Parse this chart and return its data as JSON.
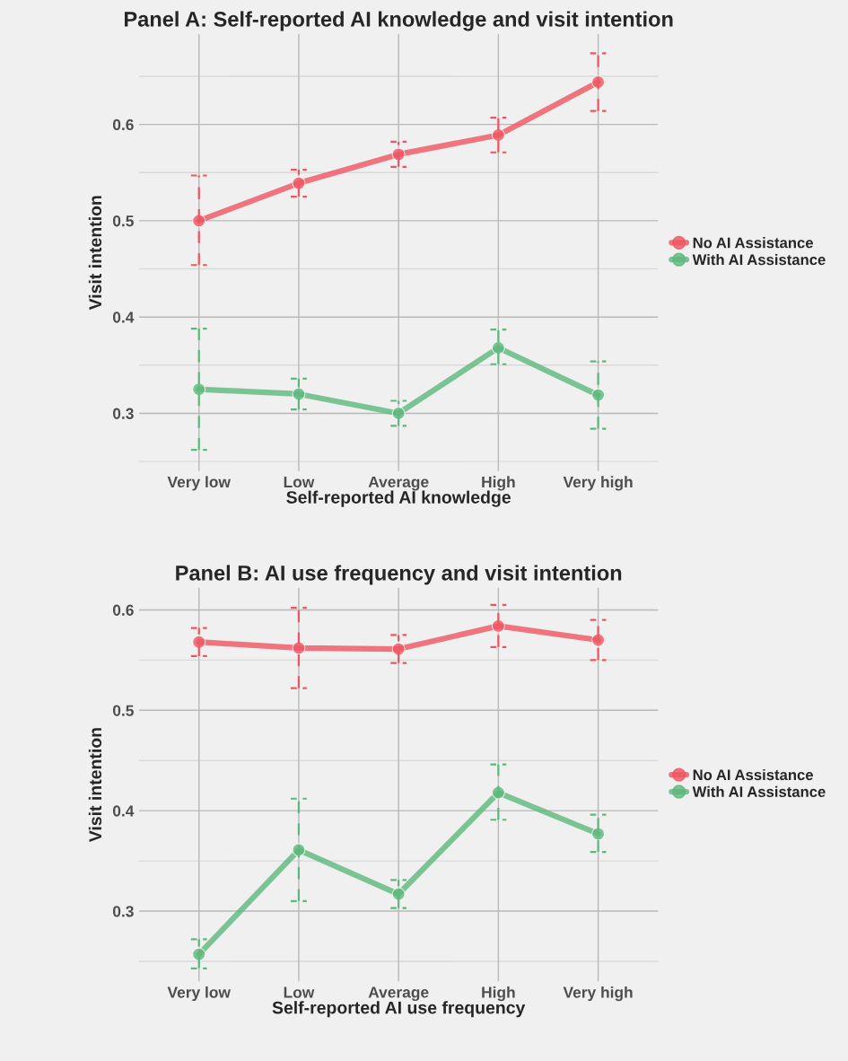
{
  "chart_data": [
    {
      "type": "line",
      "title": "Panel A: Self-reported AI knowledge and visit intention",
      "xlabel": "Self-reported AI knowledge",
      "ylabel": "Visit intention",
      "categories": [
        "Very low",
        "Low",
        "Average",
        "High",
        "Very high"
      ],
      "series": [
        {
          "name": "No AI Assistance",
          "color": "#ef5560",
          "values": [
            0.5,
            0.539,
            0.569,
            0.589,
            0.644
          ],
          "errors": [
            [
              0.454,
              0.547
            ],
            [
              0.525,
              0.553
            ],
            [
              0.556,
              0.582
            ],
            [
              0.571,
              0.607
            ],
            [
              0.614,
              0.674
            ]
          ]
        },
        {
          "name": "With AI Assistance",
          "color": "#5cb87c",
          "values": [
            0.325,
            0.32,
            0.3,
            0.368,
            0.319
          ],
          "errors": [
            [
              0.262,
              0.388
            ],
            [
              0.304,
              0.336
            ],
            [
              0.287,
              0.313
            ],
            [
              0.351,
              0.387
            ],
            [
              0.284,
              0.354
            ]
          ]
        }
      ],
      "ylim": [
        0.24,
        0.694
      ],
      "yticks": [
        {
          "value": 0.25,
          "label": null
        },
        0.3,
        {
          "value": 0.35,
          "label": null
        },
        0.4,
        {
          "value": 0.45,
          "label": null
        },
        0.5,
        {
          "value": 0.55,
          "label": null
        },
        0.6,
        {
          "value": 0.65,
          "label": null
        }
      ],
      "grid": true,
      "legend": "right",
      "marker": "circle",
      "line_style": "solid"
    },
    {
      "type": "line",
      "title": "Panel B: AI use frequency and visit intention",
      "xlabel": "Self-reported AI use frequency",
      "ylabel": "Visit intention",
      "categories": [
        "Very low",
        "Low",
        "Average",
        "High",
        "Very high"
      ],
      "series": [
        {
          "name": "No AI Assistance",
          "color": "#ef5560",
          "values": [
            0.568,
            0.562,
            0.561,
            0.584,
            0.57
          ],
          "errors": [
            [
              0.554,
              0.582
            ],
            [
              0.522,
              0.602
            ],
            [
              0.547,
              0.575
            ],
            [
              0.563,
              0.605
            ],
            [
              0.55,
              0.59
            ]
          ]
        },
        {
          "name": "With AI Assistance",
          "color": "#5cb87c",
          "values": [
            0.257,
            0.361,
            0.317,
            0.418,
            0.377
          ],
          "errors": [
            [
              0.243,
              0.272
            ],
            [
              0.31,
              0.412
            ],
            [
              0.303,
              0.331
            ],
            [
              0.391,
              0.446
            ],
            [
              0.359,
              0.396
            ]
          ]
        }
      ],
      "ylim": [
        0.23,
        0.622
      ],
      "yticks": [
        {
          "value": 0.25,
          "label": null
        },
        0.3,
        {
          "value": 0.35,
          "label": null
        },
        0.4,
        {
          "value": 0.45,
          "label": null
        },
        0.5,
        {
          "value": 0.55,
          "label": null
        },
        0.6
      ],
      "grid": true,
      "legend": "right",
      "marker": "circle",
      "line_style": "solid"
    }
  ]
}
